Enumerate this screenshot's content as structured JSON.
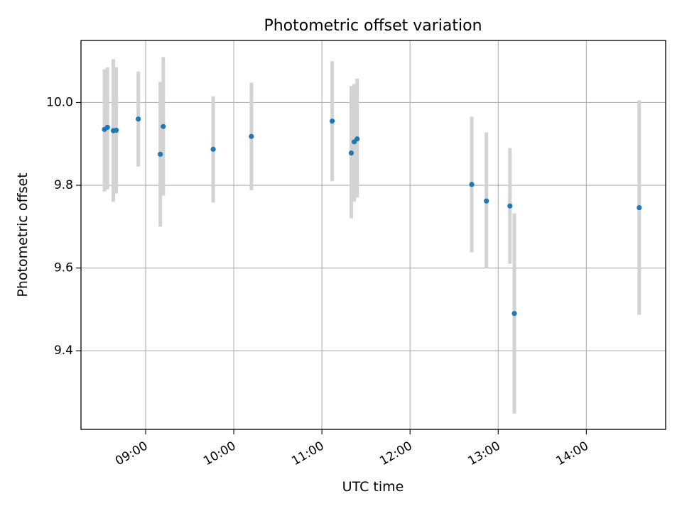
{
  "chart_data": {
    "type": "scatter",
    "title": "Photometric offset variation",
    "xlabel": "UTC time",
    "ylabel": "Photometric offset",
    "x_ticks": [
      "09:00",
      "10:00",
      "11:00",
      "12:00",
      "13:00",
      "14:00"
    ],
    "y_ticks": [
      "9.4",
      "9.6",
      "9.8",
      "10.0"
    ],
    "xlim": [
      "08:16",
      "14:54"
    ],
    "ylim": [
      9.21,
      10.15
    ],
    "grid": true,
    "marker_color": "#1f77b4",
    "errorbar_color": "#d3d3d3",
    "points": [
      {
        "x": "08:32",
        "y": 9.935,
        "err_low": 9.785,
        "err_high": 10.08
      },
      {
        "x": "08:34",
        "y": 9.94,
        "err_low": 9.79,
        "err_high": 10.085
      },
      {
        "x": "08:38",
        "y": 9.932,
        "err_low": 9.76,
        "err_high": 10.105
      },
      {
        "x": "08:40",
        "y": 9.933,
        "err_low": 9.78,
        "err_high": 10.085
      },
      {
        "x": "08:55",
        "y": 9.96,
        "err_low": 9.845,
        "err_high": 10.075
      },
      {
        "x": "09:10",
        "y": 9.875,
        "err_low": 9.7,
        "err_high": 10.05
      },
      {
        "x": "09:12",
        "y": 9.942,
        "err_low": 9.775,
        "err_high": 10.11
      },
      {
        "x": "09:46",
        "y": 9.887,
        "err_low": 9.758,
        "err_high": 10.015
      },
      {
        "x": "10:12",
        "y": 9.918,
        "err_low": 9.788,
        "err_high": 10.048
      },
      {
        "x": "11:07",
        "y": 9.955,
        "err_low": 9.81,
        "err_high": 10.1
      },
      {
        "x": "11:20",
        "y": 9.878,
        "err_low": 9.72,
        "err_high": 10.04
      },
      {
        "x": "11:22",
        "y": 9.905,
        "err_low": 9.76,
        "err_high": 10.045
      },
      {
        "x": "11:24",
        "y": 9.912,
        "err_low": 9.77,
        "err_high": 10.058
      },
      {
        "x": "12:42",
        "y": 9.802,
        "err_low": 9.638,
        "err_high": 9.966
      },
      {
        "x": "12:52",
        "y": 9.762,
        "err_low": 9.6,
        "err_high": 9.928
      },
      {
        "x": "13:08",
        "y": 9.75,
        "err_low": 9.61,
        "err_high": 9.89
      },
      {
        "x": "13:11",
        "y": 9.49,
        "err_low": 9.248,
        "err_high": 9.732
      },
      {
        "x": "14:36",
        "y": 9.746,
        "err_low": 9.487,
        "err_high": 10.005
      }
    ]
  }
}
